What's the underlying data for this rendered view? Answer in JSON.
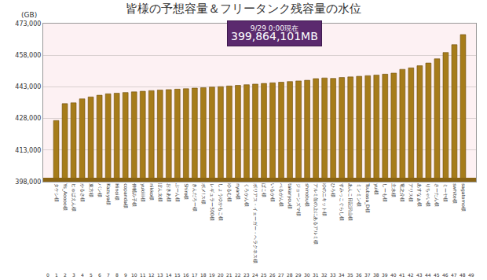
{
  "chart_data": {
    "type": "bar",
    "title": "皆様の予想容量＆フリータンク残容量の水位",
    "y_label": "(GB)",
    "annotations": [
      "9/29 0:00現在",
      "399,864,101MB"
    ],
    "level": 399864.101,
    "categories": [
      null,
      "タケシ様",
      "Ys_Aoooo様",
      "ヒゅばえん様",
      "かるさ様",
      "東方様",
      "パン様",
      "Kazuya様",
      "Hinoi様",
      "copanda様",
      "伸輔み子様",
      "yukiiii様",
      "nikko様",
      "ぽん太様",
      "おきあ様",
      "ぶーん様",
      "Shiro様",
      "きんだろー様",
      "ポメ!ス様",
      "レギュラー500様",
      "しょうゆかもこ様",
      "ゆるむ様",
      "nyan様",
      "くろかん様",
      "ボリアス・イェーガー・ヘラクネス様",
      "ぱこ様",
      "いるか様",
      "べるがん様",
      "takaryou様",
      "ジョーンズマ様",
      "shinobu様",
      "アルミ缶の上にあるアルミ様",
      "ゆのニキット様",
      "ひろ様",
      "すみっこぐらし様",
      "あんこ日記沢山様",
      "ミンミン様",
      "Tsubasa_D様",
      "yui様",
      "しーも様",
      "主水様",
      "竜之介様",
      "アリス様",
      "あすなぁ様",
      "りちゃい様",
      "さーたん様",
      "ミーヤ様",
      "swhite様",
      "sagatomo様",
      null
    ],
    "numbers": [
      0,
      1,
      2,
      3,
      4,
      5,
      6,
      7,
      8,
      9,
      10,
      11,
      12,
      13,
      14,
      15,
      16,
      17,
      18,
      19,
      20,
      21,
      22,
      23,
      24,
      25,
      26,
      27,
      28,
      29,
      30,
      31,
      32,
      33,
      34,
      35,
      36,
      37,
      38,
      39,
      40,
      41,
      42,
      43,
      44,
      45,
      46,
      47,
      48,
      49
    ],
    "values": [
      null,
      427000,
      435000,
      435400,
      437300,
      438200,
      439000,
      439700,
      440000,
      440300,
      440600,
      440900,
      441200,
      441500,
      441700,
      441900,
      442100,
      442400,
      442600,
      442900,
      443100,
      443400,
      443700,
      444000,
      444300,
      444600,
      444900,
      445200,
      445500,
      445800,
      446100,
      446900,
      447200,
      447000,
      447400,
      447700,
      448000,
      448300,
      448600,
      449000,
      449500,
      451300,
      452000,
      453000,
      454300,
      456300,
      459300,
      463000,
      467800,
      null
    ],
    "color": "#a67c1a",
    "ylim": [
      398000,
      473000
    ],
    "yticks": [
      {
        "value": 398000,
        "label": "398,000"
      },
      {
        "value": 413000,
        "label": "413,000"
      },
      {
        "value": 428000,
        "label": "428,000"
      },
      {
        "value": 443000,
        "label": "443,000"
      },
      {
        "value": 458000,
        "label": "458,000"
      },
      {
        "value": 473000,
        "label": "473,000"
      }
    ],
    "grid": true
  }
}
